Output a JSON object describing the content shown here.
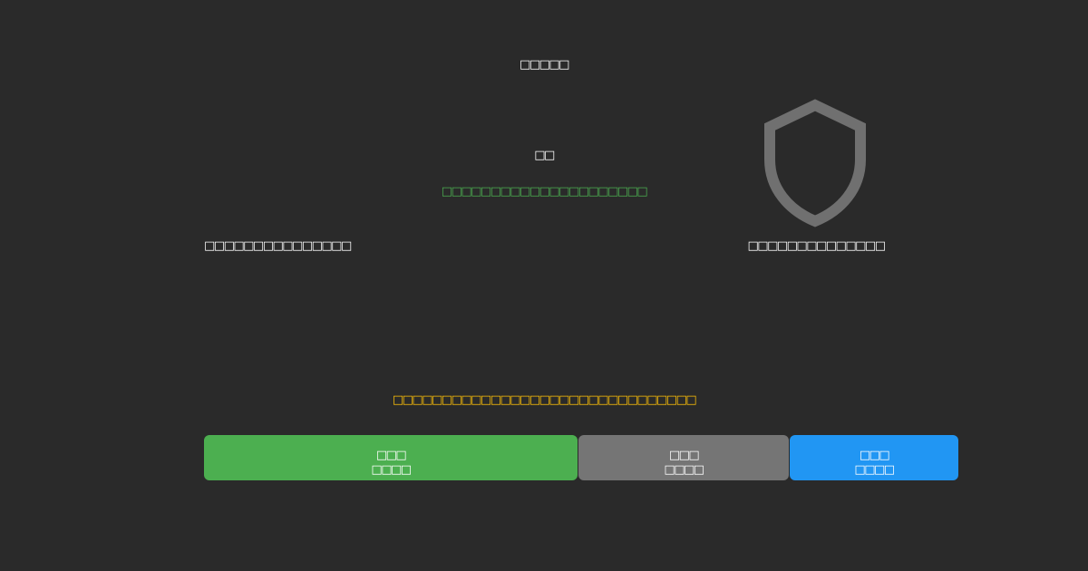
{
  "title": "□□□□□",
  "status_label": "□□",
  "status_message": "□□□□□□□□□□□□□□□□□□□□□",
  "left_label": "□□□□□□□□□□□□□□□",
  "right_label": "□□□□□□□□□□□□□□",
  "warning_message": "□□□□□□□□□□□□□□□□□□□□□□□□□□□□□□□",
  "icon": "shield-icon",
  "buttons": [
    {
      "line1": "□□□",
      "line2": "□□□□",
      "color": "#4caf50"
    },
    {
      "line1": "□□□",
      "line2": "□□□□",
      "color": "#757575"
    },
    {
      "line1": "□□□",
      "line2": "□□□□",
      "color": "#2196f3"
    }
  ],
  "colors": {
    "background": "#2a2a2a",
    "success": "#4caf50",
    "warning": "#ffc107",
    "icon": "#707070"
  }
}
